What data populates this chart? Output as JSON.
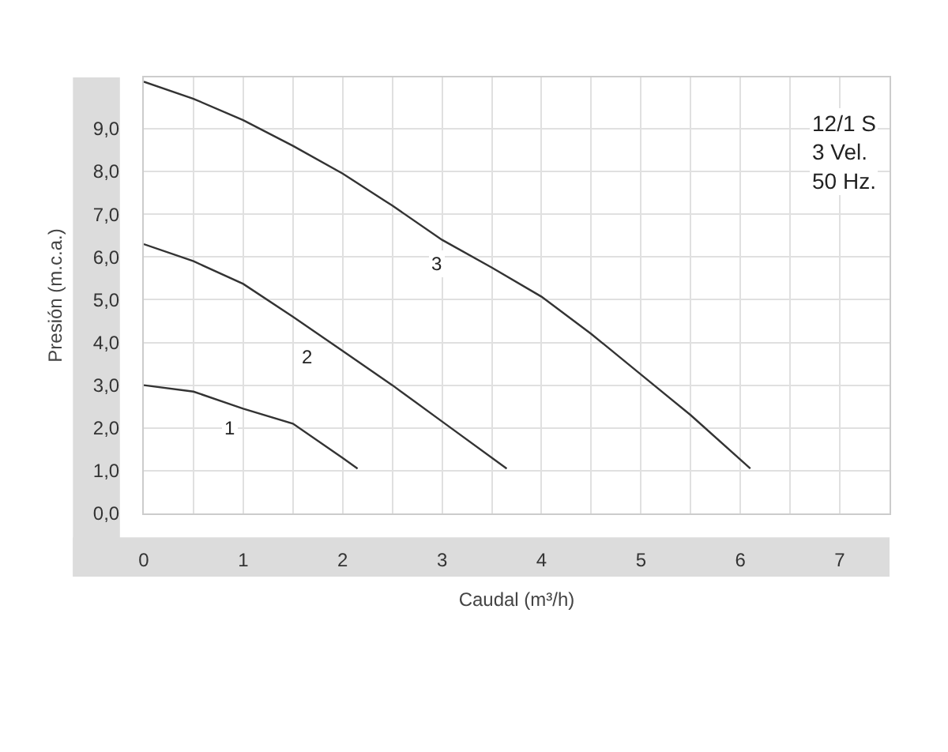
{
  "chart_data": {
    "type": "line",
    "xlabel": "Caudal (m³/h)",
    "ylabel": "Presión (m.c.a.)",
    "xlim": [
      0,
      7.5
    ],
    "ylim": [
      0,
      10.2
    ],
    "xticks": [
      0,
      {
        "value": 0.5,
        "label": null
      },
      1,
      {
        "value": 1.5,
        "label": null
      },
      2,
      {
        "value": 2.5,
        "label": null
      },
      3,
      {
        "value": 3.5,
        "label": null
      },
      4,
      {
        "value": 4.5,
        "label": null
      },
      5,
      {
        "value": 5.5,
        "label": null
      },
      6,
      {
        "value": 6.5,
        "label": null
      },
      7
    ],
    "yticks": [
      {
        "value": 0,
        "label": "0,0"
      },
      {
        "value": 1,
        "label": "1,0"
      },
      {
        "value": 2,
        "label": "2,0"
      },
      {
        "value": 3,
        "label": "3,0"
      },
      {
        "value": 4,
        "label": "4,0"
      },
      {
        "value": 5,
        "label": "5,0"
      },
      {
        "value": 6,
        "label": "6,0"
      },
      {
        "value": 7,
        "label": "7,0"
      },
      {
        "value": 8,
        "label": "8,0"
      },
      {
        "value": 9,
        "label": "9,0"
      }
    ],
    "grid": true,
    "marker": "none",
    "line_style": "solid",
    "series": [
      {
        "color": "#333333",
        "x": [
          0,
          0.5,
          1,
          1.5,
          2,
          2.15
        ],
        "values": [
          3.0,
          2.85,
          2.45,
          2.1,
          1.3,
          1.05
        ]
      },
      {
        "color": "#333333",
        "x": [
          0,
          0.5,
          1,
          1.5,
          2,
          2.5,
          3,
          3.65
        ],
        "values": [
          6.3,
          5.9,
          5.37,
          4.6,
          3.8,
          3.0,
          2.15,
          1.05
        ]
      },
      {
        "color": "#333333",
        "x": [
          0,
          0.5,
          1,
          1.5,
          2,
          2.5,
          3,
          3.5,
          4,
          4.5,
          5,
          5.5,
          6.1
        ],
        "values": [
          10.1,
          9.7,
          9.2,
          8.6,
          7.95,
          7.2,
          6.4,
          5.75,
          5.07,
          4.2,
          3.25,
          2.3,
          1.05
        ]
      }
    ],
    "annotations": [
      {
        "text": "1",
        "x": 0.86,
        "y": 2.0
      },
      {
        "text": "2",
        "x": 1.65,
        "y": 3.67
      },
      {
        "text": "3",
        "x": 2.95,
        "y": 5.85
      },
      "12/1 S\n3 Vel.\n50 Hz."
    ]
  }
}
